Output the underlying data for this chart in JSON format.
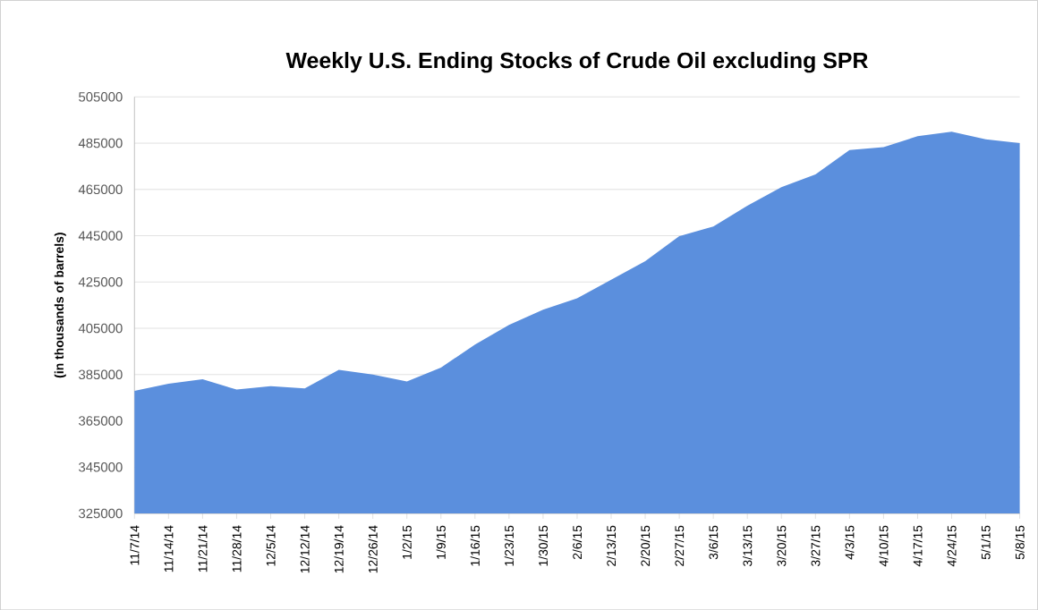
{
  "chart_data": {
    "type": "area",
    "title": "Weekly U.S. Ending Stocks of Crude Oil excluding SPR",
    "ylabel": "(in thousands of barrels)",
    "categories": [
      "11/7/14",
      "11/14/14",
      "11/21/14",
      "11/28/14",
      "12/5/14",
      "12/12/14",
      "12/19/14",
      "12/26/14",
      "1/2/15",
      "1/9/15",
      "1/16/15",
      "1/23/15",
      "1/30/15",
      "2/6/15",
      "2/13/15",
      "2/20/15",
      "2/27/15",
      "3/6/15",
      "3/13/15",
      "3/20/15",
      "3/27/15",
      "4/3/15",
      "4/10/15",
      "4/17/15",
      "4/24/15",
      "5/1/15",
      "5/8/15"
    ],
    "values": [
      378000,
      381000,
      383000,
      378500,
      380000,
      379000,
      387000,
      385000,
      382000,
      388000,
      398000,
      406500,
      413000,
      418000,
      426000,
      434000,
      444800,
      449000,
      458000,
      466000,
      471500,
      482000,
      483300,
      488000,
      490000,
      486700,
      485000
    ],
    "color": "#5b8fdd",
    "ylim": [
      325000,
      505000
    ],
    "yticks": [
      325000,
      345000,
      365000,
      385000,
      405000,
      425000,
      445000,
      465000,
      485000,
      505000
    ],
    "grid": "y"
  }
}
